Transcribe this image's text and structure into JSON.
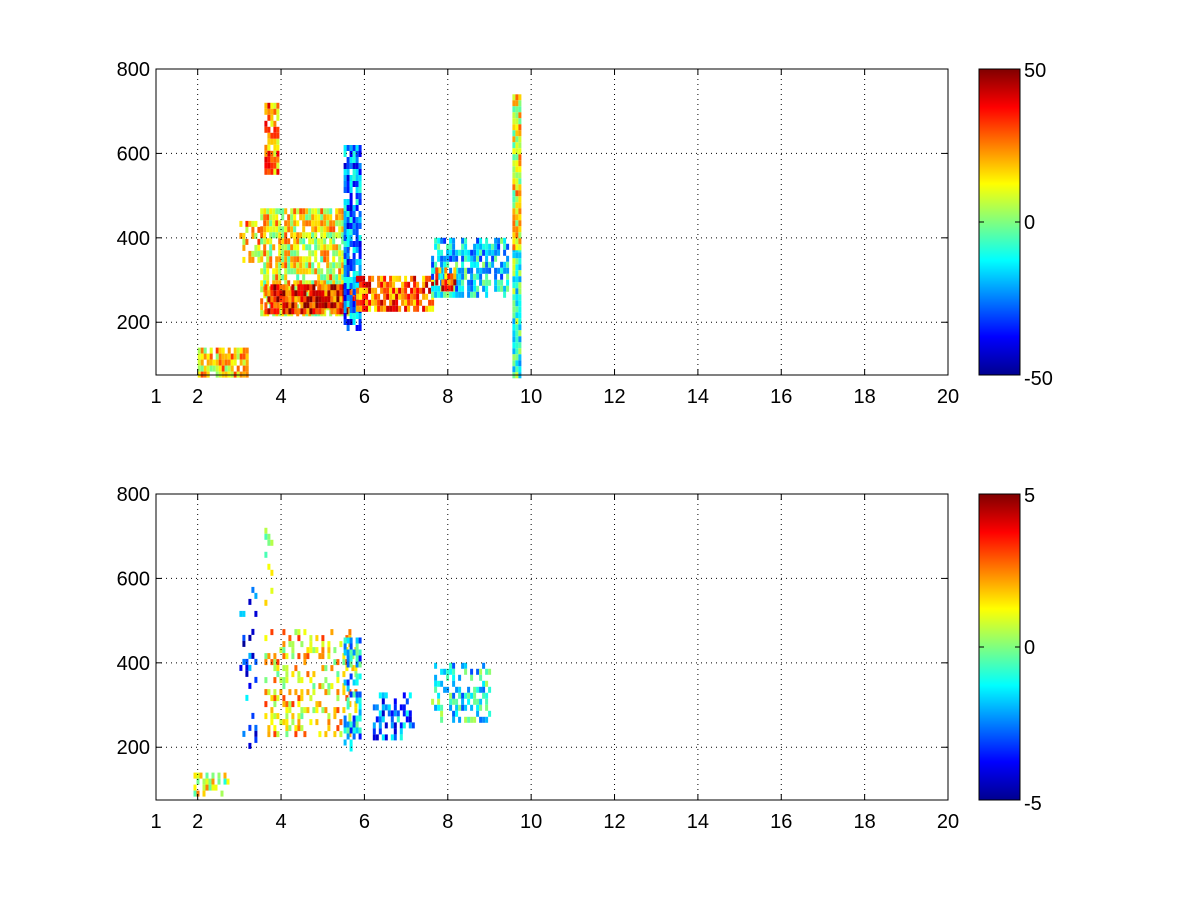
{
  "chart_data": [
    {
      "type": "heatmap",
      "title": "",
      "xlabel": "",
      "ylabel": "",
      "xlim": [
        1,
        20
      ],
      "ylim": [
        75,
        800
      ],
      "grid": true,
      "xticks": [
        1,
        2,
        4,
        6,
        8,
        10,
        12,
        14,
        16,
        18,
        20
      ],
      "yticks": [
        200,
        400,
        600,
        800
      ],
      "colorbar": {
        "min": -50,
        "max": 50,
        "ticks": [
          -50,
          0,
          50
        ],
        "colormap": "jet"
      },
      "features": [
        {
          "kind": "blob",
          "x": [
            2.0,
            3.2
          ],
          "y": [
            80,
            140
          ],
          "value": 15,
          "density": 0.85
        },
        {
          "kind": "blob",
          "x": [
            3.0,
            3.5
          ],
          "y": [
            350,
            440
          ],
          "value": 18,
          "density": 0.7
        },
        {
          "kind": "blob",
          "x": [
            3.5,
            5.6
          ],
          "y": [
            220,
            470
          ],
          "value": 12,
          "density": 0.8
        },
        {
          "kind": "blob",
          "x": [
            3.6,
            3.9
          ],
          "y": [
            560,
            720
          ],
          "value": 25,
          "density": 0.8
        },
        {
          "kind": "band",
          "x": [
            3.6,
            5.8
          ],
          "y": [
            225,
            290
          ],
          "value": 35,
          "density": 0.9
        },
        {
          "kind": "blob",
          "x": [
            5.5,
            5.9
          ],
          "y": [
            180,
            620
          ],
          "value": -25,
          "density": 0.8
        },
        {
          "kind": "band",
          "x": [
            5.8,
            7.6
          ],
          "y": [
            230,
            310
          ],
          "value": 28,
          "density": 0.75
        },
        {
          "kind": "blob",
          "x": [
            7.6,
            9.4
          ],
          "y": [
            260,
            400
          ],
          "value": -15,
          "density": 0.7
        },
        {
          "kind": "band",
          "x": [
            7.7,
            8.2
          ],
          "y": [
            280,
            330
          ],
          "value": 30,
          "density": 0.8
        },
        {
          "kind": "stripe",
          "x": [
            9.55,
            9.7
          ],
          "y": [
            75,
            380
          ],
          "value": -8,
          "density": 1.0
        },
        {
          "kind": "stripe",
          "x": [
            9.55,
            9.7
          ],
          "y": [
            380,
            740
          ],
          "value": 12,
          "density": 1.0
        }
      ]
    },
    {
      "type": "heatmap",
      "title": "",
      "xlabel": "",
      "ylabel": "",
      "xlim": [
        1,
        20
      ],
      "ylim": [
        75,
        800
      ],
      "grid": true,
      "xticks": [
        1,
        2,
        4,
        6,
        8,
        10,
        12,
        14,
        16,
        18,
        20
      ],
      "yticks": [
        200,
        400,
        600,
        800
      ],
      "colorbar": {
        "min": -5,
        "max": 5,
        "ticks": [
          -5,
          0,
          5
        ],
        "colormap": "jet"
      },
      "features": [
        {
          "kind": "blob",
          "x": [
            1.9,
            2.7
          ],
          "y": [
            85,
            140
          ],
          "value": 0.8,
          "density": 0.35
        },
        {
          "kind": "blob",
          "x": [
            3.0,
            3.4
          ],
          "y": [
            200,
            580
          ],
          "value": -3,
          "density": 0.15
        },
        {
          "kind": "blob",
          "x": [
            3.6,
            3.8
          ],
          "y": [
            540,
            720
          ],
          "value": 1.0,
          "density": 0.35
        },
        {
          "kind": "blob",
          "x": [
            3.6,
            5.8
          ],
          "y": [
            230,
            480
          ],
          "value": 1.5,
          "density": 0.35
        },
        {
          "kind": "blob",
          "x": [
            5.5,
            5.9
          ],
          "y": [
            200,
            460
          ],
          "value": -1.8,
          "density": 0.5
        },
        {
          "kind": "blob",
          "x": [
            6.2,
            7.2
          ],
          "y": [
            220,
            330
          ],
          "value": -2.5,
          "density": 0.45
        },
        {
          "kind": "blob",
          "x": [
            7.6,
            9.0
          ],
          "y": [
            260,
            400
          ],
          "value": -1.2,
          "density": 0.4
        }
      ]
    }
  ]
}
